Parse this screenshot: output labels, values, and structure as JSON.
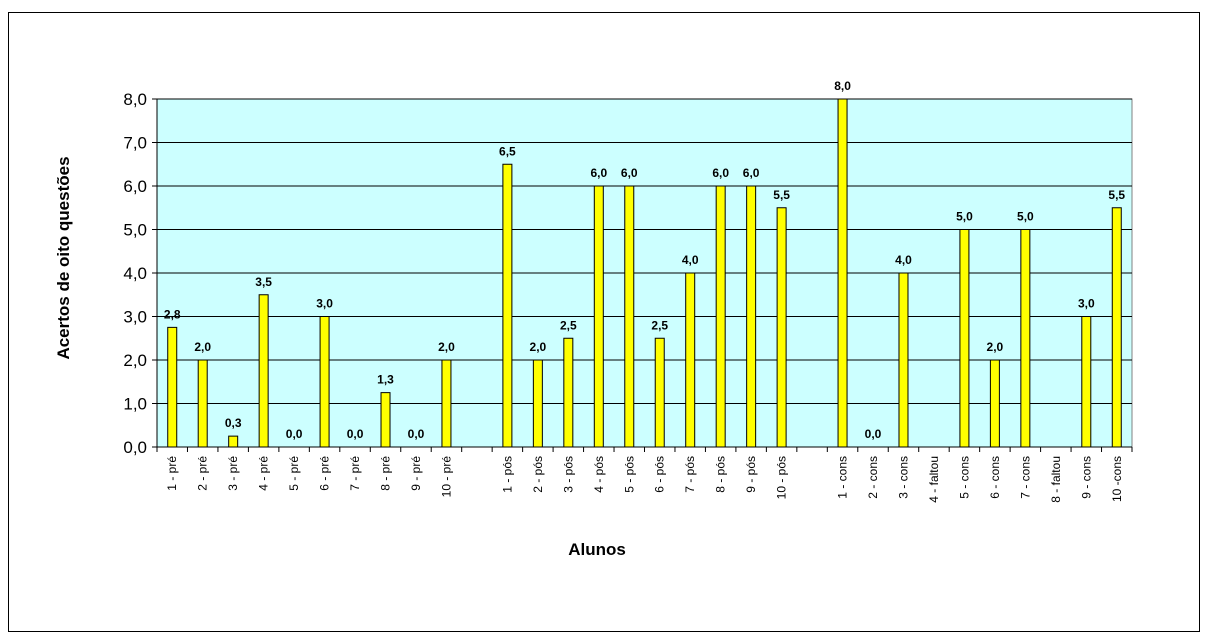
{
  "chart_data": {
    "type": "bar",
    "title": "",
    "xlabel": "Alunos",
    "ylabel": "Acertos de oito questões",
    "ylim": [
      0,
      8
    ],
    "yticks": [
      "0,0",
      "1,0",
      "2,0",
      "3,0",
      "4,0",
      "5,0",
      "6,0",
      "7,0",
      "8,0"
    ],
    "grid": true,
    "legend": "none",
    "colors": {
      "plot_bg": "#ccffff",
      "bar": "#ffff00",
      "bar_edge": "#000000",
      "grid": "#000000"
    },
    "categories": [
      "1 - pré",
      "2 - pré",
      "3 - pré",
      "4 - pré",
      "5 - pré",
      "6 - pré",
      "7 - pré",
      "8 - pré",
      "9 - pré",
      "10 - pré",
      "",
      "1 - pós",
      "2 - pós",
      "3 - pós",
      "4 - pós",
      "5 - pós",
      "6 - pós",
      "7 - pós",
      "8 - pós",
      "9 - pós",
      "10 - pós",
      "",
      "1 - cons",
      "2 - cons",
      "3 - cons",
      "4 - faltou",
      "5 - cons",
      "6 - cons",
      "7 - cons",
      "8 - faltou",
      "9 - cons",
      "10 -cons"
    ],
    "values": [
      2.75,
      2.0,
      0.25,
      3.5,
      0.0,
      3.0,
      0.0,
      1.25,
      0.0,
      2.0,
      null,
      6.5,
      2.0,
      2.5,
      6.0,
      6.0,
      2.5,
      4.0,
      6.0,
      6.0,
      5.5,
      null,
      8.0,
      0.0,
      4.0,
      null,
      5.0,
      2.0,
      5.0,
      null,
      3.0,
      5.5
    ],
    "data_labels": [
      "2,8",
      "2,0",
      "0,3",
      "3,5",
      "0,0",
      "3,0",
      "0,0",
      "1,3",
      "0,0",
      "2,0",
      "",
      "6,5",
      "2,0",
      "2,5",
      "6,0",
      "6,0",
      "2,5",
      "4,0",
      "6,0",
      "6,0",
      "5,5",
      "",
      "8,0",
      "0,0",
      "4,0",
      "",
      "5,0",
      "2,0",
      "5,0",
      "",
      "3,0",
      "5,5"
    ]
  }
}
